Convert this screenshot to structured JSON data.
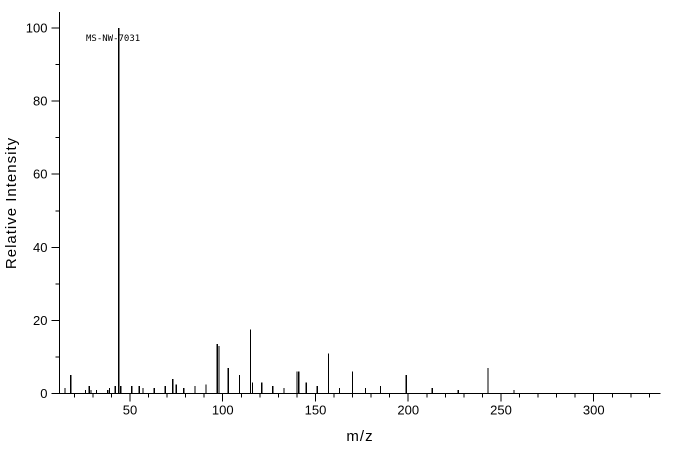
{
  "chart_data": {
    "type": "bar",
    "subtype": "mass-spectrum",
    "annotation": "MS-NW-7031",
    "title": "",
    "xlabel": "m/z",
    "ylabel": "Relative Intensity",
    "xlim": [
      12,
      336
    ],
    "ylim": [
      0,
      100
    ],
    "x_major_ticks": [
      50,
      100,
      150,
      200,
      250,
      300
    ],
    "x_minor_tick_step": 10,
    "y_major_ticks": [
      0,
      20,
      40,
      60,
      80,
      100
    ],
    "y_minor_tick_step": 10,
    "grid": false,
    "legend": false,
    "axis_color": "#000000",
    "peak_color": "#000000",
    "peaks": [
      {
        "mz": 15,
        "intensity": 1.5
      },
      {
        "mz": 18,
        "intensity": 5
      },
      {
        "mz": 26,
        "intensity": 1
      },
      {
        "mz": 28,
        "intensity": 2
      },
      {
        "mz": 29,
        "intensity": 1
      },
      {
        "mz": 32,
        "intensity": 1
      },
      {
        "mz": 38,
        "intensity": 1
      },
      {
        "mz": 39,
        "intensity": 1.5
      },
      {
        "mz": 42,
        "intensity": 2
      },
      {
        "mz": 44,
        "intensity": 100
      },
      {
        "mz": 45,
        "intensity": 2
      },
      {
        "mz": 51,
        "intensity": 2
      },
      {
        "mz": 55,
        "intensity": 2
      },
      {
        "mz": 57,
        "intensity": 1.5
      },
      {
        "mz": 63,
        "intensity": 1.5
      },
      {
        "mz": 69,
        "intensity": 2
      },
      {
        "mz": 73,
        "intensity": 4
      },
      {
        "mz": 75,
        "intensity": 2.5
      },
      {
        "mz": 79,
        "intensity": 1.5
      },
      {
        "mz": 85,
        "intensity": 2
      },
      {
        "mz": 91,
        "intensity": 2.5
      },
      {
        "mz": 97,
        "intensity": 13.5
      },
      {
        "mz": 98,
        "intensity": 13
      },
      {
        "mz": 103,
        "intensity": 7
      },
      {
        "mz": 109,
        "intensity": 5
      },
      {
        "mz": 115,
        "intensity": 17.5
      },
      {
        "mz": 116,
        "intensity": 3
      },
      {
        "mz": 121,
        "intensity": 3
      },
      {
        "mz": 127,
        "intensity": 2
      },
      {
        "mz": 133,
        "intensity": 1.5
      },
      {
        "mz": 140,
        "intensity": 6
      },
      {
        "mz": 141,
        "intensity": 6
      },
      {
        "mz": 145,
        "intensity": 3
      },
      {
        "mz": 151,
        "intensity": 2
      },
      {
        "mz": 157,
        "intensity": 11
      },
      {
        "mz": 163,
        "intensity": 1.5
      },
      {
        "mz": 170,
        "intensity": 6
      },
      {
        "mz": 177,
        "intensity": 1.5
      },
      {
        "mz": 185,
        "intensity": 2
      },
      {
        "mz": 199,
        "intensity": 5
      },
      {
        "mz": 213,
        "intensity": 1.5
      },
      {
        "mz": 227,
        "intensity": 1
      },
      {
        "mz": 243,
        "intensity": 7
      },
      {
        "mz": 257,
        "intensity": 1
      }
    ]
  }
}
